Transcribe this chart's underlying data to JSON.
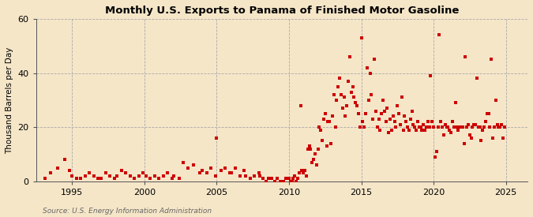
{
  "title": "Monthly U.S. Exports to Panama of Finished Motor Gasoline",
  "ylabel": "Thousand Barrels per Day",
  "source": "Source: U.S. Energy Information Administration",
  "background_color": "#f5e6c8",
  "plot_background_color": "#f5e6c8",
  "dot_color": "#cc0000",
  "dot_size": 5,
  "ylim": [
    0,
    60
  ],
  "yticks": [
    0,
    20,
    40,
    60
  ],
  "xlim_start": 1992.5,
  "xlim_end": 2026.5,
  "xticks": [
    1995,
    2000,
    2005,
    2010,
    2015,
    2020,
    2025
  ],
  "data": [
    [
      1993.1,
      1
    ],
    [
      1993.5,
      3
    ],
    [
      1994.0,
      5
    ],
    [
      1994.5,
      8
    ],
    [
      1994.8,
      4
    ],
    [
      1995.0,
      2
    ],
    [
      1995.3,
      1
    ],
    [
      1995.6,
      1
    ],
    [
      1995.9,
      2
    ],
    [
      1996.2,
      3
    ],
    [
      1996.5,
      2
    ],
    [
      1996.8,
      1
    ],
    [
      1997.0,
      1
    ],
    [
      1997.3,
      3
    ],
    [
      1997.6,
      2
    ],
    [
      1997.9,
      1
    ],
    [
      1998.1,
      2
    ],
    [
      1998.4,
      4
    ],
    [
      1998.7,
      3
    ],
    [
      1999.0,
      2
    ],
    [
      1999.3,
      1
    ],
    [
      1999.6,
      2
    ],
    [
      1999.9,
      3
    ],
    [
      2000.1,
      2
    ],
    [
      2000.4,
      1
    ],
    [
      2000.7,
      2
    ],
    [
      2001.0,
      1
    ],
    [
      2001.3,
      2
    ],
    [
      2001.6,
      3
    ],
    [
      2001.9,
      1
    ],
    [
      2002.0,
      2
    ],
    [
      2002.4,
      1
    ],
    [
      2002.7,
      7
    ],
    [
      2003.0,
      5
    ],
    [
      2003.4,
      6
    ],
    [
      2003.8,
      3
    ],
    [
      2004.0,
      4
    ],
    [
      2004.3,
      3
    ],
    [
      2004.6,
      5
    ],
    [
      2004.9,
      2
    ],
    [
      2005.0,
      16
    ],
    [
      2005.3,
      4
    ],
    [
      2005.6,
      5
    ],
    [
      2005.9,
      3
    ],
    [
      2006.0,
      3
    ],
    [
      2006.3,
      5
    ],
    [
      2006.6,
      2
    ],
    [
      2006.9,
      4
    ],
    [
      2007.0,
      2
    ],
    [
      2007.3,
      1
    ],
    [
      2007.6,
      2
    ],
    [
      2007.9,
      3
    ],
    [
      2008.0,
      2
    ],
    [
      2008.2,
      1
    ],
    [
      2008.4,
      0
    ],
    [
      2008.6,
      1
    ],
    [
      2008.8,
      1
    ],
    [
      2009.0,
      0
    ],
    [
      2009.2,
      1
    ],
    [
      2009.4,
      0
    ],
    [
      2009.6,
      0
    ],
    [
      2009.8,
      1
    ],
    [
      2010.0,
      1
    ],
    [
      2010.1,
      0
    ],
    [
      2010.2,
      0
    ],
    [
      2010.3,
      1
    ],
    [
      2010.4,
      2
    ],
    [
      2010.5,
      0
    ],
    [
      2010.6,
      1
    ],
    [
      2010.7,
      3
    ],
    [
      2010.8,
      28
    ],
    [
      2010.9,
      4
    ],
    [
      2011.0,
      3
    ],
    [
      2011.1,
      4
    ],
    [
      2011.2,
      2
    ],
    [
      2011.3,
      12
    ],
    [
      2011.4,
      13
    ],
    [
      2011.5,
      12
    ],
    [
      2011.6,
      7
    ],
    [
      2011.7,
      8
    ],
    [
      2011.8,
      10
    ],
    [
      2011.9,
      6
    ],
    [
      2012.0,
      12
    ],
    [
      2012.1,
      20
    ],
    [
      2012.2,
      19
    ],
    [
      2012.3,
      15
    ],
    [
      2012.4,
      23
    ],
    [
      2012.5,
      25
    ],
    [
      2012.6,
      13
    ],
    [
      2012.7,
      22
    ],
    [
      2012.8,
      22
    ],
    [
      2012.9,
      14
    ],
    [
      2013.0,
      24
    ],
    [
      2013.1,
      32
    ],
    [
      2013.2,
      20
    ],
    [
      2013.3,
      30
    ],
    [
      2013.4,
      35
    ],
    [
      2013.5,
      38
    ],
    [
      2013.6,
      32
    ],
    [
      2013.7,
      27
    ],
    [
      2013.8,
      31
    ],
    [
      2013.9,
      24
    ],
    [
      2014.0,
      28
    ],
    [
      2014.1,
      37
    ],
    [
      2014.2,
      46
    ],
    [
      2014.3,
      33
    ],
    [
      2014.4,
      35
    ],
    [
      2014.5,
      31
    ],
    [
      2014.6,
      29
    ],
    [
      2014.7,
      28
    ],
    [
      2014.8,
      25
    ],
    [
      2014.9,
      20
    ],
    [
      2015.0,
      53
    ],
    [
      2015.1,
      22
    ],
    [
      2015.2,
      20
    ],
    [
      2015.3,
      25
    ],
    [
      2015.4,
      42
    ],
    [
      2015.5,
      30
    ],
    [
      2015.6,
      40
    ],
    [
      2015.7,
      32
    ],
    [
      2015.8,
      23
    ],
    [
      2015.9,
      45
    ],
    [
      2016.0,
      26
    ],
    [
      2016.1,
      20
    ],
    [
      2016.2,
      23
    ],
    [
      2016.3,
      19
    ],
    [
      2016.4,
      25
    ],
    [
      2016.5,
      30
    ],
    [
      2016.6,
      26
    ],
    [
      2016.7,
      22
    ],
    [
      2016.8,
      27
    ],
    [
      2016.9,
      18
    ],
    [
      2017.0,
      23
    ],
    [
      2017.1,
      19
    ],
    [
      2017.2,
      24
    ],
    [
      2017.3,
      22
    ],
    [
      2017.4,
      20
    ],
    [
      2017.5,
      28
    ],
    [
      2017.6,
      25
    ],
    [
      2017.7,
      21
    ],
    [
      2017.8,
      31
    ],
    [
      2017.9,
      19
    ],
    [
      2018.0,
      24
    ],
    [
      2018.1,
      22
    ],
    [
      2018.2,
      20
    ],
    [
      2018.3,
      19
    ],
    [
      2018.4,
      23
    ],
    [
      2018.5,
      26
    ],
    [
      2018.6,
      21
    ],
    [
      2018.7,
      20
    ],
    [
      2018.8,
      19
    ],
    [
      2018.9,
      22
    ],
    [
      2019.0,
      20
    ],
    [
      2019.1,
      20
    ],
    [
      2019.2,
      19
    ],
    [
      2019.3,
      21
    ],
    [
      2019.4,
      19
    ],
    [
      2019.5,
      20
    ],
    [
      2019.6,
      22
    ],
    [
      2019.7,
      20
    ],
    [
      2019.8,
      39
    ],
    [
      2019.9,
      22
    ],
    [
      2020.0,
      20
    ],
    [
      2020.1,
      9
    ],
    [
      2020.2,
      11
    ],
    [
      2020.3,
      20
    ],
    [
      2020.4,
      54
    ],
    [
      2020.5,
      22
    ],
    [
      2020.6,
      20
    ],
    [
      2020.7,
      17
    ],
    [
      2020.8,
      21
    ],
    [
      2020.9,
      20
    ],
    [
      2021.0,
      20
    ],
    [
      2021.1,
      19
    ],
    [
      2021.2,
      18
    ],
    [
      2021.3,
      22
    ],
    [
      2021.4,
      20
    ],
    [
      2021.5,
      29
    ],
    [
      2021.6,
      20
    ],
    [
      2021.7,
      19
    ],
    [
      2021.8,
      20
    ],
    [
      2021.9,
      20
    ],
    [
      2022.0,
      20
    ],
    [
      2022.1,
      14
    ],
    [
      2022.2,
      46
    ],
    [
      2022.3,
      20
    ],
    [
      2022.4,
      21
    ],
    [
      2022.5,
      17
    ],
    [
      2022.6,
      16
    ],
    [
      2022.7,
      20
    ],
    [
      2022.8,
      21
    ],
    [
      2022.9,
      21
    ],
    [
      2023.0,
      38
    ],
    [
      2023.1,
      20
    ],
    [
      2023.2,
      20
    ],
    [
      2023.3,
      15
    ],
    [
      2023.4,
      19
    ],
    [
      2023.5,
      20
    ],
    [
      2023.6,
      22
    ],
    [
      2023.7,
      25
    ],
    [
      2023.8,
      25
    ],
    [
      2023.9,
      20
    ],
    [
      2024.0,
      45
    ],
    [
      2024.1,
      16
    ],
    [
      2024.2,
      20
    ],
    [
      2024.3,
      30
    ],
    [
      2024.4,
      21
    ],
    [
      2024.5,
      20
    ],
    [
      2024.6,
      20
    ],
    [
      2024.7,
      21
    ],
    [
      2024.8,
      16
    ],
    [
      2024.9,
      20
    ]
  ]
}
